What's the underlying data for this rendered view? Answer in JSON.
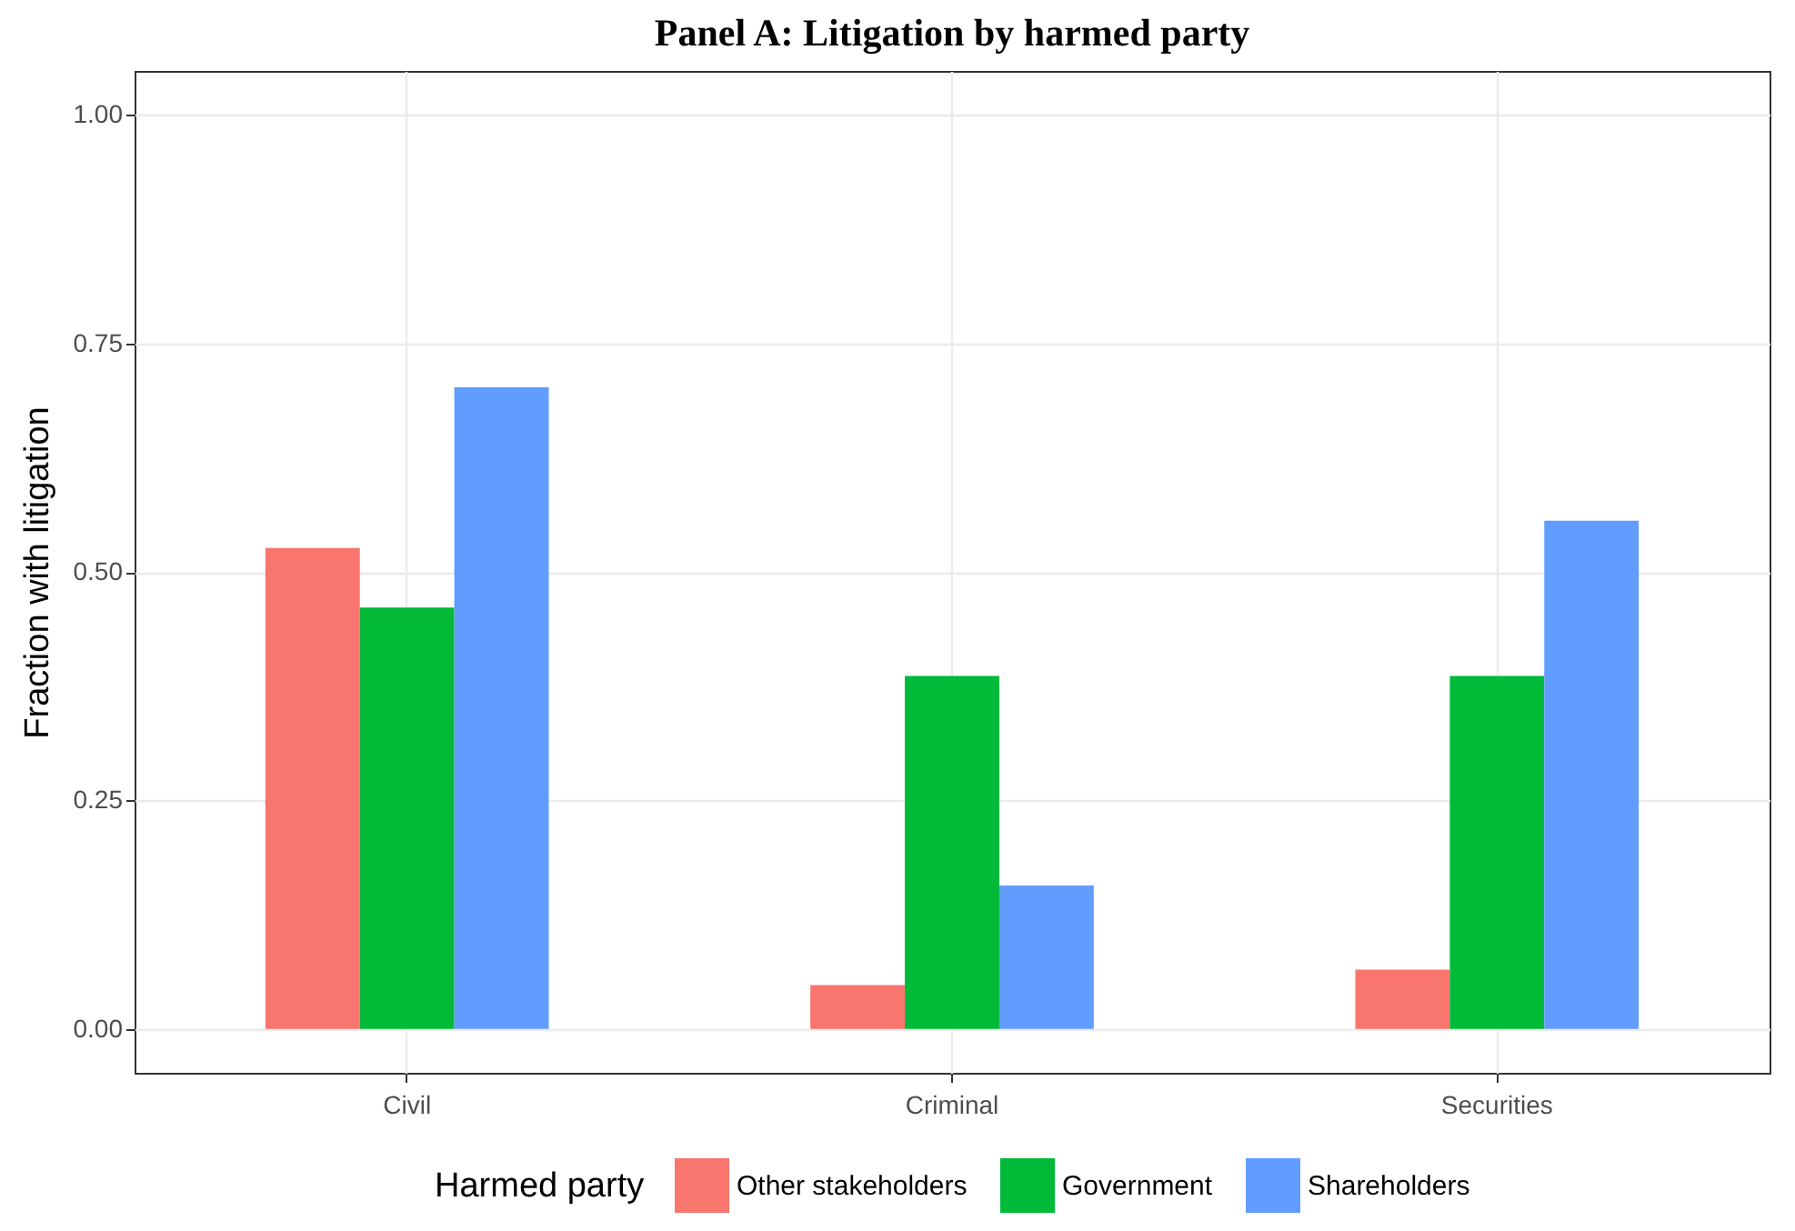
{
  "chart_data": {
    "type": "bar",
    "title": "Panel A: Litigation by harmed party",
    "ylabel": "Fraction with litigation",
    "legend_title": "Harmed party",
    "categories": [
      "Civil",
      "Criminal",
      "Securities"
    ],
    "series": [
      {
        "name": "Other stakeholders",
        "color": "#f8766d",
        "values": [
          0.526,
          0.048,
          0.065
        ]
      },
      {
        "name": "Government",
        "color": "#00ba38",
        "values": [
          0.461,
          0.386,
          0.386
        ]
      },
      {
        "name": "Shareholders",
        "color": "#619cff",
        "values": [
          0.702,
          0.157,
          0.556
        ]
      }
    ],
    "ylim": [
      -0.048,
      1.048
    ],
    "yticks": [
      {
        "value": 0,
        "label": "0.00"
      },
      {
        "value": 0.25,
        "label": "0.25"
      },
      {
        "value": 0.5,
        "label": "0.50"
      },
      {
        "value": 0.75,
        "label": "0.75"
      },
      {
        "value": 1,
        "label": "1.00"
      }
    ],
    "grid": true,
    "legend": "bottom"
  }
}
